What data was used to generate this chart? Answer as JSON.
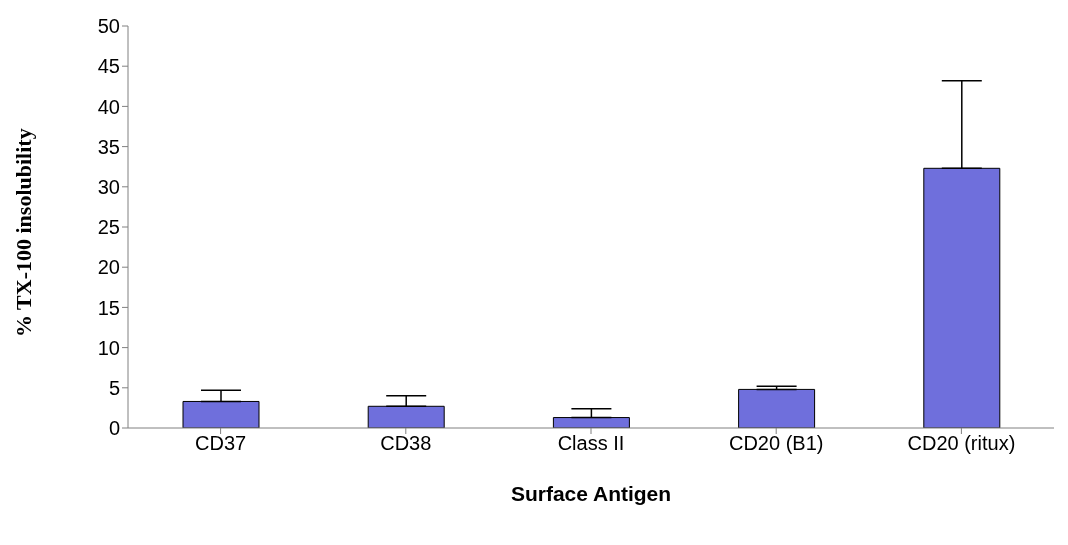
{
  "chart_data": {
    "type": "bar",
    "xlabel": "Surface Antigen",
    "ylabel": "% TX-100 insolubility",
    "categories": [
      "CD37",
      "CD38",
      "Class II",
      "CD20 (B1)",
      "CD20 (ritux)"
    ],
    "values": [
      3.3,
      2.7,
      1.3,
      4.8,
      32.3
    ],
    "errors": [
      [
        3.3,
        4.7
      ],
      [
        2.7,
        4.0
      ],
      [
        1.3,
        2.4
      ],
      [
        4.8,
        5.2
      ],
      [
        32.3,
        43.2
      ]
    ],
    "color": "#6f6fdc",
    "ylim": [
      0,
      50
    ],
    "yticks": [
      0,
      5,
      10,
      15,
      20,
      25,
      30,
      35,
      40,
      45,
      50
    ],
    "grid": false,
    "legend": false
  }
}
